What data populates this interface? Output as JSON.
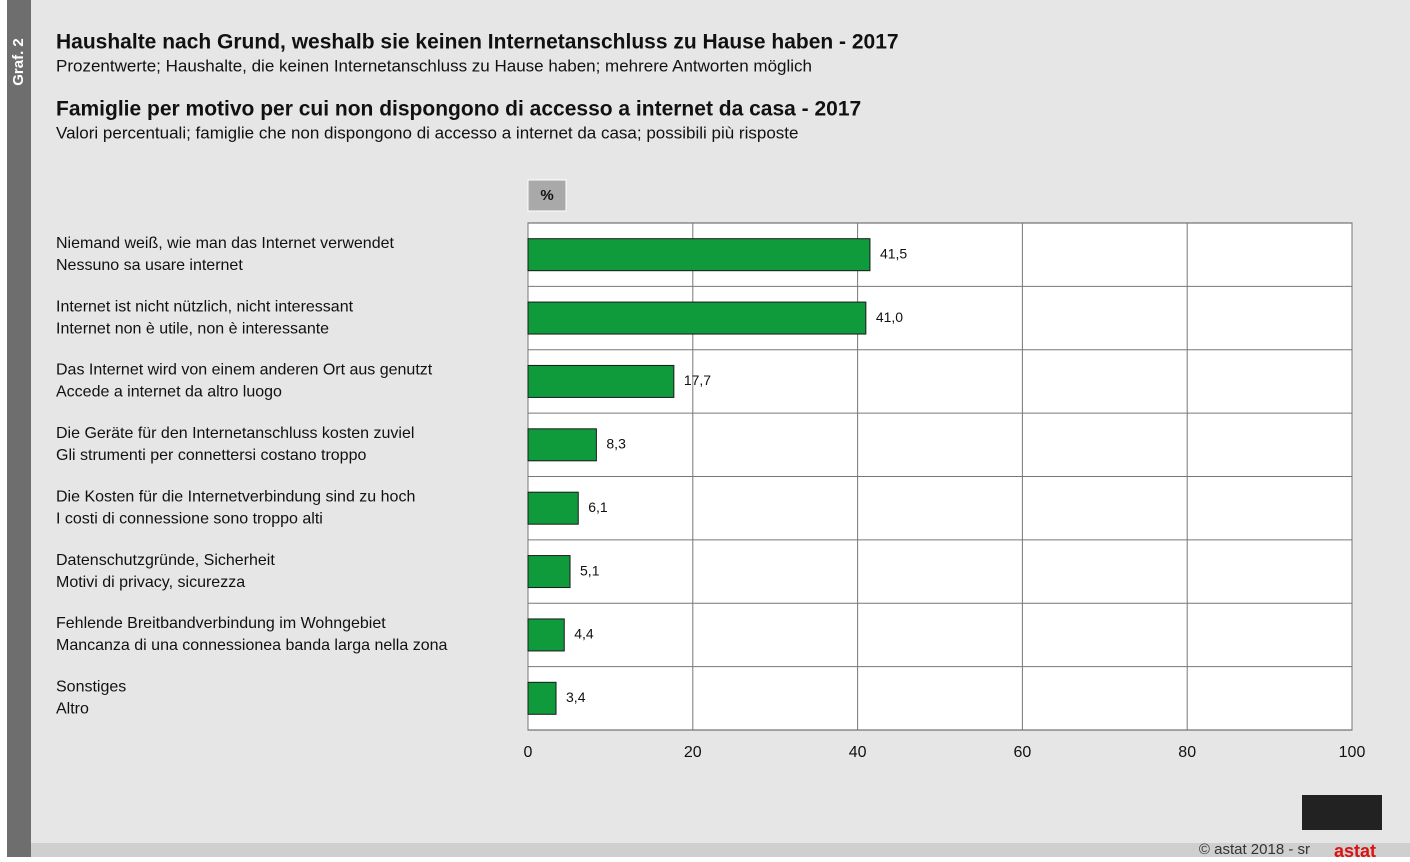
{
  "chart_data": {
    "type": "hbar",
    "figure_label": "Graf. 2",
    "title": "Haushalte nach Grund, weshalb sie keinen Internetanschluss zu Hause haben - 2017",
    "subtitle": "Prozentwerte; Haushalte, die keinen Internetanschluss zu Hause haben; mehrere Antworten möglich",
    "title_it": "Famiglie per motivo per cui non dispongono di accesso a internet da casa - 2017",
    "subtitle_it": "Valori percentuali; famiglie che non dispongono di accesso a internet da casa; possibili più risposte",
    "unit": "%",
    "categories": [
      [
        "Niemand weiß, wie man das Internet verwendet",
        "Nessuno sa usare internet"
      ],
      [
        "Internet ist nicht nützlich, nicht interessant",
        "Internet non è utile, non è interessante"
      ],
      [
        "Das Internet wird von einem anderen Ort aus genutzt",
        "Accede a internet da altro luogo"
      ],
      [
        "Die Geräte für den Internetanschluss kosten zuviel",
        "Gli strumenti per connettersi costano troppo"
      ],
      [
        "Die Kosten für die Internetverbindung sind zu hoch",
        "I costi di connessione sono troppo alti"
      ],
      [
        "Datenschutzgründe, Sicherheit",
        "Motivi di privacy, sicurezza"
      ],
      [
        "Fehlende Breitbandverbindung im Wohngebiet",
        "Mancanza di una connessionea banda larga nella zona"
      ],
      [
        "Sonstiges",
        "Altro"
      ]
    ],
    "values": [
      41.5,
      41.0,
      17.7,
      8.3,
      6.1,
      5.1,
      4.4,
      3.4
    ],
    "value_labels": [
      "41,5",
      "41,0",
      "17,7",
      "8,3",
      "6,1",
      "5,1",
      "4,4",
      "3,4"
    ],
    "color": "#0f9a3c",
    "xlim": [
      0,
      100
    ],
    "xticks": [
      0,
      20,
      40,
      60,
      80,
      100
    ],
    "grid": true,
    "footer": "© astat 2018 - sr",
    "logo": "astat"
  }
}
